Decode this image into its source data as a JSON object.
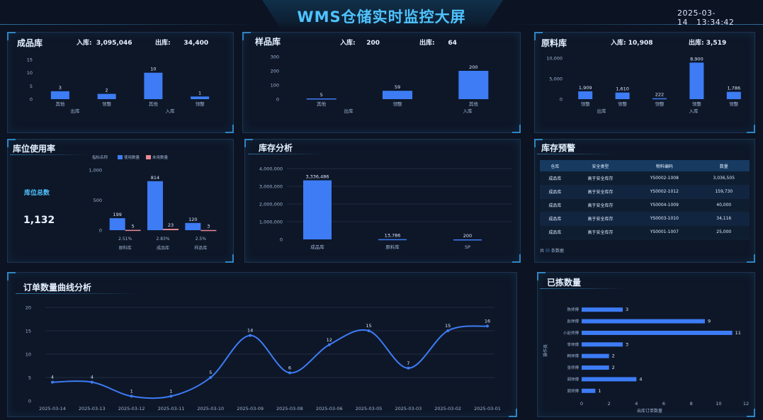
{
  "header": {
    "title": "WMS仓储实时监控大屏",
    "date": "2025-03-14",
    "time": "13:34:42"
  },
  "finished": {
    "title": "成品库",
    "in_label": "入库:",
    "in_value": "3,095,046",
    "out_label": "出库:",
    "out_value": "34,400",
    "axis_ticks": [
      "15",
      "10",
      "5",
      "0"
    ],
    "categories": [
      "其他",
      "领整",
      "其他",
      "领整"
    ],
    "group_labels": [
      "出库",
      "入库"
    ],
    "values": [
      3,
      2,
      10,
      1
    ],
    "ylim": [
      0,
      15
    ]
  },
  "sample": {
    "title": "样品库",
    "in_label": "入库:",
    "in_value": "200",
    "out_label": "出库:",
    "out_value": "64",
    "axis_ticks": [
      "300",
      "200",
      "100",
      "0"
    ],
    "categories": [
      "其他",
      "领整",
      "其他"
    ],
    "group_labels": [
      "出库",
      "入库"
    ],
    "values": [
      5,
      59,
      200
    ],
    "ylim": [
      0,
      300
    ]
  },
  "raw": {
    "title": "原料库",
    "in_label": "入库:",
    "in_value": "10,908",
    "out_label": "出库:",
    "out_value": "3,519",
    "axis_ticks": [
      "10,000",
      "5,000",
      "0"
    ],
    "categories": [
      "领整",
      "领整",
      "领整",
      "领整",
      "领整"
    ],
    "group_labels": [
      "出库",
      "入库"
    ],
    "values": [
      1909,
      1610,
      222,
      8900,
      1786
    ],
    "ylim": [
      0,
      10000
    ]
  },
  "location": {
    "title": "库位使用率",
    "total_label": "库位总数",
    "total_value": "1,132",
    "legend_name": "指标名称",
    "legend_used": "使用数量",
    "legend_unused": "未用数量",
    "axis_ticks": [
      "1,000",
      "500",
      "0"
    ],
    "categories": [
      "原料库",
      "成品库",
      "样品库"
    ],
    "used": [
      199,
      814,
      120
    ],
    "unused": [
      5,
      23,
      3
    ],
    "rates": [
      "2.51%",
      "2.83%",
      "2.5%"
    ],
    "ylim": [
      0,
      1000
    ]
  },
  "inventory": {
    "title": "库存分析",
    "axis_ticks": [
      "4,000,000",
      "3,000,000",
      "2,000,000",
      "1,000,000",
      "0"
    ],
    "categories": [
      "成品库",
      "原料库",
      "SP"
    ],
    "values": [
      3336486,
      13786,
      200
    ],
    "value_labels": [
      "3,336,486",
      "13,786",
      "200"
    ],
    "ylim": [
      0,
      4000000
    ]
  },
  "warning": {
    "title": "库存预警",
    "columns": [
      "仓库",
      "安全类型",
      "物料编码",
      "数量"
    ],
    "rows": [
      [
        "成品库",
        "高于安全库存",
        "YS0002-1008",
        "3,036,505"
      ],
      [
        "成品库",
        "高于安全库存",
        "YS0002-1012",
        "159,730"
      ],
      [
        "成品库",
        "高于安全库存",
        "YS0004-1009",
        "40,000"
      ],
      [
        "成品库",
        "高于安全库存",
        "YS0003-1010",
        "34,116"
      ],
      [
        "成品库",
        "高于安全库存",
        "YS0001-1007",
        "25,000"
      ]
    ],
    "footer_prefix": "共",
    "footer_suffix": "条数据"
  },
  "orders": {
    "title": "订单数量曲线分析",
    "axis_ticks": [
      "20",
      "15",
      "10",
      "5",
      "0"
    ],
    "x": [
      "2025-03-14",
      "2025-03-13",
      "2025-03-12",
      "2025-03-11",
      "2025-03-10",
      "2025-03-09",
      "2025-03-08",
      "2025-03-06",
      "2025-03-05",
      "2025-03-03",
      "2025-03-02",
      "2025-03-01"
    ],
    "values": [
      4,
      4,
      1,
      1,
      5,
      14,
      6,
      12,
      15,
      7,
      15,
      16
    ],
    "ylim": [
      0,
      20
    ]
  },
  "picked": {
    "title": "已拣数量",
    "ylabel": "操作员",
    "xlabel": "出库订单数量",
    "axis_ticks": [
      "0",
      "2",
      "4",
      "6",
      "8",
      "10",
      "12"
    ],
    "names": [
      "陈师傅",
      "赵师傅",
      "小赵师傅",
      "李师傅",
      "韩师傅",
      "张师傅",
      "胡师傅",
      "周师傅"
    ],
    "values": [
      3,
      9,
      11,
      3,
      2,
      2,
      4,
      1
    ],
    "xlim": [
      0,
      12
    ]
  },
  "colors": {
    "bar": "#3d7cf5",
    "unused": "#e88a94",
    "accent": "#4fc3ff",
    "grid": "#1e2b40"
  },
  "chart_data": [
    {
      "type": "bar",
      "title": "成品库",
      "categories": [
        "其他",
        "领整",
        "其他",
        "领整"
      ],
      "values": [
        3,
        2,
        10,
        1
      ],
      "ylim": [
        0,
        15
      ]
    },
    {
      "type": "bar",
      "title": "样品库",
      "categories": [
        "其他",
        "领整",
        "其他"
      ],
      "values": [
        5,
        59,
        200
      ],
      "ylim": [
        0,
        300
      ]
    },
    {
      "type": "bar",
      "title": "原料库",
      "categories": [
        "领整",
        "领整",
        "领整",
        "领整",
        "领整"
      ],
      "values": [
        1909,
        1610,
        222,
        8900,
        1786
      ],
      "ylim": [
        0,
        10000
      ]
    },
    {
      "type": "bar",
      "title": "库位使用率",
      "categories": [
        "原料库",
        "成品库",
        "样品库"
      ],
      "series": [
        {
          "name": "使用数量",
          "values": [
            199,
            814,
            120
          ]
        },
        {
          "name": "未用数量",
          "values": [
            5,
            23,
            3
          ]
        }
      ],
      "ylim": [
        0,
        1000
      ]
    },
    {
      "type": "bar",
      "title": "库存分析",
      "categories": [
        "成品库",
        "原料库",
        "SP"
      ],
      "values": [
        3336486,
        13786,
        200
      ],
      "ylim": [
        0,
        4000000
      ]
    },
    {
      "type": "line",
      "title": "订单数量曲线分析",
      "x": [
        "2025-03-14",
        "2025-03-13",
        "2025-03-12",
        "2025-03-11",
        "2025-03-10",
        "2025-03-09",
        "2025-03-08",
        "2025-03-06",
        "2025-03-05",
        "2025-03-03",
        "2025-03-02",
        "2025-03-01"
      ],
      "values": [
        4,
        4,
        1,
        1,
        5,
        14,
        6,
        12,
        15,
        7,
        15,
        16
      ],
      "ylim": [
        0,
        20
      ]
    },
    {
      "type": "bar",
      "title": "已拣数量",
      "categories": [
        "陈师傅",
        "赵师傅",
        "小赵师傅",
        "李师傅",
        "韩师傅",
        "张师傅",
        "胡师傅",
        "周师傅"
      ],
      "values": [
        3,
        9,
        11,
        3,
        2,
        2,
        4,
        1
      ],
      "xlabel": "出库订单数量",
      "ylabel": "操作员",
      "xlim": [
        0,
        12
      ]
    }
  ]
}
